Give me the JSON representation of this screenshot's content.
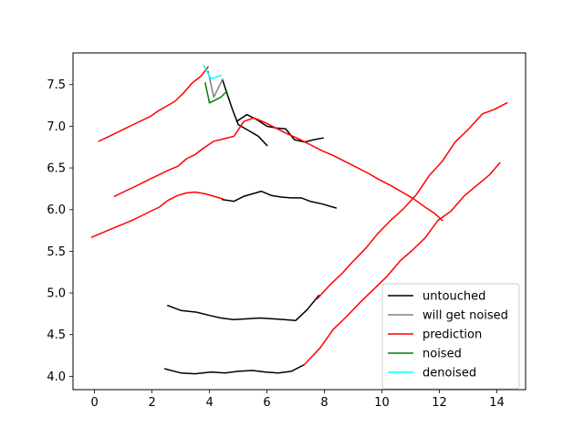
{
  "chart_data": {
    "type": "line",
    "title": "",
    "xlabel": "",
    "ylabel": "",
    "xlim": [
      -0.75,
      15.0
    ],
    "ylim": [
      3.84,
      7.88
    ],
    "xticks": [
      0,
      2,
      4,
      6,
      8,
      10,
      12,
      14
    ],
    "xtick_labels": [
      "0",
      "2",
      "4",
      "6",
      "8",
      "10",
      "12",
      "14"
    ],
    "yticks": [
      4.0,
      4.5,
      5.0,
      5.5,
      6.0,
      6.5,
      7.0,
      7.5
    ],
    "ytick_labels": [
      "4.0",
      "4.5",
      "5.0",
      "5.5",
      "6.0",
      "6.5",
      "7.0",
      "7.5"
    ],
    "grid": false,
    "legend_position": "lower-right",
    "legend": [
      {
        "label": "untouched",
        "color": "#000000"
      },
      {
        "label": "will get noised",
        "color": "#808080"
      },
      {
        "label": "prediction",
        "color": "#ff0000"
      },
      {
        "label": "noised",
        "color": "#008000"
      },
      {
        "label": "denoised",
        "color": "#00ffff"
      }
    ],
    "series": [
      {
        "group": "prediction",
        "color": "#ff0000",
        "points": [
          [
            0.15,
            6.82
          ],
          [
            0.45,
            6.87
          ],
          [
            0.75,
            6.92
          ],
          [
            1.05,
            6.97
          ],
          [
            1.35,
            7.02
          ],
          [
            1.65,
            7.07
          ],
          [
            1.95,
            7.12
          ],
          [
            2.2,
            7.18
          ],
          [
            2.5,
            7.24
          ],
          [
            2.8,
            7.3
          ],
          [
            3.1,
            7.4
          ],
          [
            3.4,
            7.52
          ],
          [
            3.7,
            7.6
          ],
          [
            3.95,
            7.71
          ]
        ]
      },
      {
        "group": "untouched",
        "color": "#000000",
        "points": [
          [
            4.45,
            7.56
          ],
          [
            4.65,
            7.35
          ],
          [
            4.8,
            7.2
          ],
          [
            5.0,
            7.02
          ],
          [
            5.35,
            6.95
          ],
          [
            5.7,
            6.88
          ],
          [
            6.0,
            6.77
          ]
        ]
      },
      {
        "group": "untouched",
        "color": "#000000",
        "points": [
          [
            4.95,
            7.06
          ],
          [
            5.3,
            7.14
          ],
          [
            5.65,
            7.08
          ],
          [
            6.0,
            7.0
          ],
          [
            6.3,
            6.98
          ],
          [
            6.65,
            6.97
          ],
          [
            6.95,
            6.84
          ],
          [
            7.3,
            6.81
          ],
          [
            7.65,
            6.84
          ],
          [
            7.95,
            6.86
          ]
        ]
      },
      {
        "group": "will get noised",
        "color": "#808080",
        "points": [
          [
            3.95,
            7.66
          ],
          [
            4.15,
            7.35
          ],
          [
            4.45,
            7.56
          ]
        ]
      },
      {
        "group": "noised",
        "color": "#008000",
        "points": [
          [
            3.85,
            7.52
          ],
          [
            4.0,
            7.28
          ],
          [
            4.4,
            7.35
          ],
          [
            4.6,
            7.42
          ]
        ]
      },
      {
        "group": "denoised",
        "color": "#00ffff",
        "points": [
          [
            3.8,
            7.73
          ],
          [
            4.05,
            7.57
          ],
          [
            4.4,
            7.61
          ]
        ]
      },
      {
        "group": "prediction",
        "color": "#ff0000",
        "points": [
          [
            0.7,
            6.16
          ],
          [
            1.0,
            6.21
          ],
          [
            1.3,
            6.26
          ],
          [
            1.6,
            6.31
          ],
          [
            1.95,
            6.37
          ],
          [
            2.25,
            6.42
          ],
          [
            2.55,
            6.47
          ],
          [
            2.9,
            6.52
          ],
          [
            3.2,
            6.61
          ],
          [
            3.5,
            6.66
          ],
          [
            3.8,
            6.74
          ],
          [
            4.15,
            6.82
          ],
          [
            4.5,
            6.85
          ],
          [
            4.85,
            6.88
          ],
          [
            5.2,
            7.06
          ],
          [
            5.55,
            7.1
          ],
          [
            5.9,
            7.05
          ],
          [
            6.3,
            6.98
          ],
          [
            6.7,
            6.91
          ],
          [
            7.1,
            6.85
          ],
          [
            7.5,
            6.78
          ],
          [
            7.9,
            6.71
          ],
          [
            8.3,
            6.65
          ],
          [
            8.7,
            6.58
          ],
          [
            9.1,
            6.51
          ],
          [
            9.5,
            6.44
          ],
          [
            9.9,
            6.36
          ],
          [
            10.3,
            6.29
          ],
          [
            10.7,
            6.21
          ],
          [
            11.1,
            6.13
          ],
          [
            11.5,
            6.03
          ],
          [
            11.85,
            5.95
          ],
          [
            12.1,
            5.87
          ]
        ]
      },
      {
        "group": "prediction",
        "color": "#ff0000",
        "points": [
          [
            -0.1,
            5.67
          ],
          [
            0.25,
            5.72
          ],
          [
            0.6,
            5.77
          ],
          [
            0.95,
            5.82
          ],
          [
            1.3,
            5.87
          ],
          [
            1.6,
            5.92
          ],
          [
            1.95,
            5.98
          ],
          [
            2.25,
            6.03
          ],
          [
            2.55,
            6.11
          ],
          [
            2.9,
            6.17
          ],
          [
            3.2,
            6.2
          ],
          [
            3.5,
            6.21
          ],
          [
            3.85,
            6.19
          ],
          [
            4.15,
            6.16
          ],
          [
            4.45,
            6.13
          ]
        ]
      },
      {
        "group": "untouched",
        "color": "#000000",
        "points": [
          [
            4.45,
            6.12
          ],
          [
            4.85,
            6.1
          ],
          [
            5.2,
            6.16
          ],
          [
            5.5,
            6.19
          ],
          [
            5.8,
            6.22
          ],
          [
            6.15,
            6.17
          ],
          [
            6.5,
            6.15
          ],
          [
            6.85,
            6.14
          ],
          [
            7.2,
            6.14
          ],
          [
            7.5,
            6.1
          ],
          [
            7.9,
            6.07
          ],
          [
            8.4,
            6.02
          ]
        ]
      },
      {
        "group": "untouched",
        "color": "#000000",
        "points": [
          [
            2.55,
            4.85
          ],
          [
            3.0,
            4.79
          ],
          [
            3.55,
            4.77
          ],
          [
            4.0,
            4.73
          ],
          [
            4.4,
            4.7
          ],
          [
            4.85,
            4.68
          ],
          [
            5.3,
            4.69
          ],
          [
            5.75,
            4.7
          ],
          [
            6.2,
            4.69
          ],
          [
            6.6,
            4.68
          ],
          [
            7.0,
            4.67
          ],
          [
            7.4,
            4.8
          ],
          [
            7.8,
            4.97
          ]
        ]
      },
      {
        "group": "untouched",
        "color": "#000000",
        "points": [
          [
            2.45,
            4.09
          ],
          [
            3.0,
            4.04
          ],
          [
            3.5,
            4.03
          ],
          [
            4.05,
            4.05
          ],
          [
            4.55,
            4.04
          ],
          [
            5.0,
            4.06
          ],
          [
            5.5,
            4.07
          ],
          [
            5.95,
            4.05
          ],
          [
            6.4,
            4.04
          ],
          [
            6.85,
            4.06
          ],
          [
            7.3,
            4.14
          ]
        ]
      },
      {
        "group": "prediction",
        "color": "#ff0000",
        "points": [
          [
            7.75,
            4.93
          ],
          [
            8.2,
            5.1
          ],
          [
            8.6,
            5.23
          ],
          [
            9.0,
            5.38
          ],
          [
            9.45,
            5.54
          ],
          [
            9.85,
            5.71
          ],
          [
            10.3,
            5.87
          ],
          [
            10.75,
            6.01
          ],
          [
            11.2,
            6.18
          ],
          [
            11.65,
            6.41
          ],
          [
            12.1,
            6.58
          ],
          [
            12.55,
            6.81
          ],
          [
            13.0,
            6.96
          ],
          [
            13.5,
            7.15
          ],
          [
            13.9,
            7.2
          ],
          [
            14.35,
            7.28
          ]
        ]
      },
      {
        "group": "prediction",
        "color": "#ff0000",
        "points": [
          [
            7.3,
            4.14
          ],
          [
            7.85,
            4.34
          ],
          [
            8.3,
            4.56
          ],
          [
            8.75,
            4.71
          ],
          [
            9.25,
            4.89
          ],
          [
            9.7,
            5.04
          ],
          [
            10.15,
            5.19
          ],
          [
            10.65,
            5.39
          ],
          [
            11.05,
            5.51
          ],
          [
            11.5,
            5.66
          ],
          [
            11.95,
            5.87
          ],
          [
            12.4,
            5.98
          ],
          [
            12.85,
            6.16
          ],
          [
            13.3,
            6.29
          ],
          [
            13.75,
            6.42
          ],
          [
            14.1,
            6.56
          ]
        ]
      }
    ]
  }
}
